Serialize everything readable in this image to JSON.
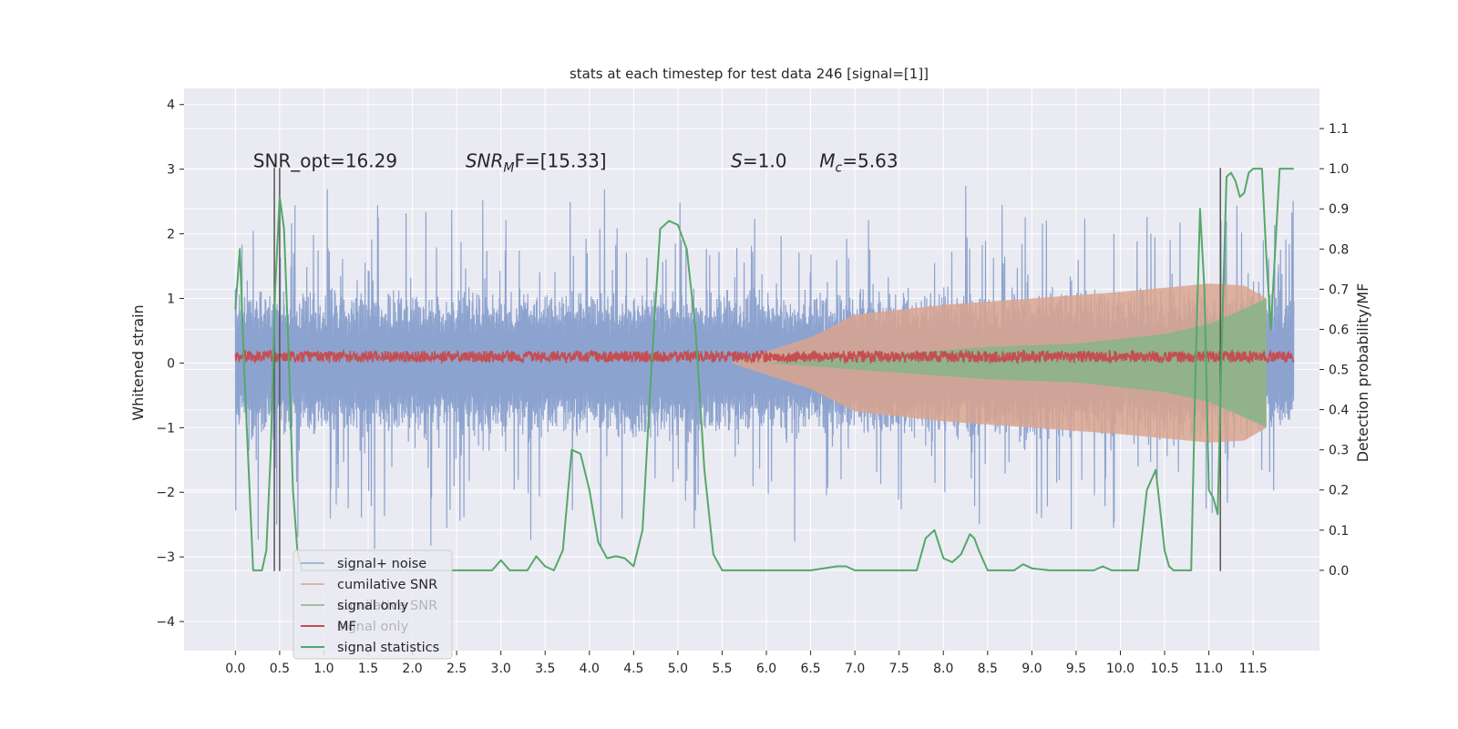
{
  "chart_data": {
    "type": "line",
    "title": "stats at each timestep for test data 246 [signal=[1]]",
    "ylabel": "Whitened strain",
    "y2label": "Detection probability/MF",
    "xlim": [
      -0.58,
      12.25
    ],
    "ylim": [
      -4.45,
      4.25
    ],
    "y2lim": [
      -0.2,
      1.2
    ],
    "xticks": [
      "0.0",
      "0.5",
      "1.0",
      "1.5",
      "2.0",
      "2.5",
      "3.0",
      "3.5",
      "4.0",
      "4.5",
      "5.0",
      "5.5",
      "6.0",
      "6.5",
      "7.0",
      "7.5",
      "8.0",
      "8.5",
      "9.0",
      "9.5",
      "10.0",
      "10.5",
      "11.0",
      "11.5"
    ],
    "yticks": [
      "−4",
      "−3",
      "−2",
      "−1",
      "0",
      "1",
      "2",
      "3",
      "4"
    ],
    "y2ticks": [
      "0.0",
      "0.1",
      "0.2",
      "0.3",
      "0.4",
      "0.5",
      "0.6",
      "0.7",
      "0.8",
      "0.9",
      "1.0",
      "1.1"
    ],
    "grid": true,
    "legend_position": "lower-left",
    "colors": {
      "noise": "#8da3cf",
      "cumulative_snr": "#d9a58f",
      "signal_only": "#86b587",
      "mf": "#c44e52",
      "statistics": "#55a868",
      "markers": "#555555",
      "background": "#eaeaf2",
      "grid": "#ffffff"
    },
    "annotations": [
      {
        "segments": [
          "SNR_opt=16.29"
        ],
        "x": 0.2,
        "y": 3.0
      },
      {
        "segments": [
          "SNR",
          "M",
          "F=[15.33]"
        ],
        "x": 2.6,
        "y": 3.0
      },
      {
        "segments": [
          "S",
          "=1.0"
        ],
        "x": 5.6,
        "y": 3.0
      },
      {
        "segments": [
          "M",
          "c",
          "=5.63"
        ],
        "x": 6.6,
        "y": 3.0
      }
    ],
    "vertical_markers": [
      {
        "x": 0.44,
        "y": [
          -3.22,
          3.02
        ]
      },
      {
        "x": 0.5,
        "y": [
          -3.22,
          3.02
        ]
      },
      {
        "x": 11.13,
        "y": [
          -3.22,
          3.02
        ]
      }
    ],
    "legend": [
      "signal+ noise",
      "cumilative SNR",
      "signal only",
      "MF",
      "signal statistics"
    ],
    "legend_ghost": [
      "cumilative SNR",
      "signal only"
    ],
    "noise": {
      "t_start": 0.0,
      "t_end": 11.96,
      "base_amplitude": 1.2,
      "peak_amplitude": 3.0
    },
    "cumulative_snr_envelope": {
      "t": [
        5.6,
        6.5,
        7.0,
        8.0,
        9.0,
        10.0,
        11.0,
        11.4,
        11.65
      ],
      "upper": [
        0.0,
        0.4,
        0.75,
        0.9,
        1.0,
        1.1,
        1.23,
        1.2,
        1.0
      ]
    },
    "signal_only_envelope": {
      "t": [
        6.0,
        7.5,
        8.5,
        9.5,
        10.5,
        11.0,
        11.5,
        11.65
      ],
      "upper": [
        0.0,
        0.15,
        0.25,
        0.3,
        0.45,
        0.6,
        0.9,
        1.0
      ]
    },
    "mf_base": 0.1,
    "signal_statistics": {
      "x": [
        0.0,
        0.05,
        0.1,
        0.15,
        0.2,
        0.25,
        0.3,
        0.35,
        0.4,
        0.45,
        0.5,
        0.55,
        0.6,
        0.65,
        0.7,
        0.75,
        0.8,
        0.9,
        1.0,
        1.2,
        1.4,
        1.6,
        1.8,
        2.0,
        2.2,
        2.4,
        2.6,
        2.8,
        2.9,
        3.0,
        3.1,
        3.2,
        3.3,
        3.4,
        3.5,
        3.6,
        3.7,
        3.8,
        3.9,
        4.0,
        4.1,
        4.2,
        4.3,
        4.4,
        4.5,
        4.6,
        4.7,
        4.8,
        4.9,
        5.0,
        5.1,
        5.2,
        5.3,
        5.4,
        5.5,
        5.6,
        5.8,
        6.0,
        6.2,
        6.5,
        6.8,
        6.9,
        7.0,
        7.2,
        7.5,
        7.7,
        7.8,
        7.9,
        8.0,
        8.1,
        8.2,
        8.3,
        8.35,
        8.4,
        8.5,
        8.6,
        8.8,
        8.9,
        9.0,
        9.2,
        9.5,
        9.7,
        9.8,
        9.9,
        10.0,
        10.2,
        10.3,
        10.4,
        10.45,
        10.5,
        10.55,
        10.6,
        10.7,
        10.8,
        10.85,
        10.9,
        10.95,
        11.0,
        11.05,
        11.1,
        11.15,
        11.2,
        11.25,
        11.3,
        11.35,
        11.4,
        11.45,
        11.5,
        11.55,
        11.6,
        11.65,
        11.7,
        11.8,
        11.9,
        11.96
      ],
      "y": [
        0.65,
        0.8,
        0.5,
        0.25,
        0.0,
        0.0,
        0.0,
        0.05,
        0.3,
        0.7,
        0.93,
        0.85,
        0.55,
        0.2,
        0.05,
        0.0,
        0.0,
        0.0,
        0.0,
        0.0,
        0.0,
        0.0,
        0.0,
        0.0,
        0.0,
        0.0,
        0.0,
        0.0,
        0.0,
        0.025,
        0.0,
        0.0,
        0.0,
        0.035,
        0.01,
        0.0,
        0.05,
        0.3,
        0.29,
        0.2,
        0.07,
        0.03,
        0.035,
        0.03,
        0.01,
        0.1,
        0.5,
        0.85,
        0.87,
        0.86,
        0.8,
        0.6,
        0.25,
        0.04,
        0.0,
        0.0,
        0.0,
        0.0,
        0.0,
        0.0,
        0.01,
        0.01,
        0.0,
        0.0,
        0.0,
        0.0,
        0.08,
        0.1,
        0.03,
        0.02,
        0.04,
        0.09,
        0.08,
        0.05,
        0.0,
        0.0,
        0.0,
        0.015,
        0.005,
        0.0,
        0.0,
        0.0,
        0.01,
        0.0,
        0.0,
        0.0,
        0.2,
        0.25,
        0.15,
        0.05,
        0.01,
        0.0,
        0.0,
        0.0,
        0.5,
        0.9,
        0.7,
        0.2,
        0.18,
        0.14,
        0.6,
        0.98,
        0.99,
        0.97,
        0.93,
        0.94,
        0.99,
        1.0,
        1.0,
        1.0,
        0.78,
        0.6,
        1.0,
        1.0,
        1.0
      ]
    }
  }
}
